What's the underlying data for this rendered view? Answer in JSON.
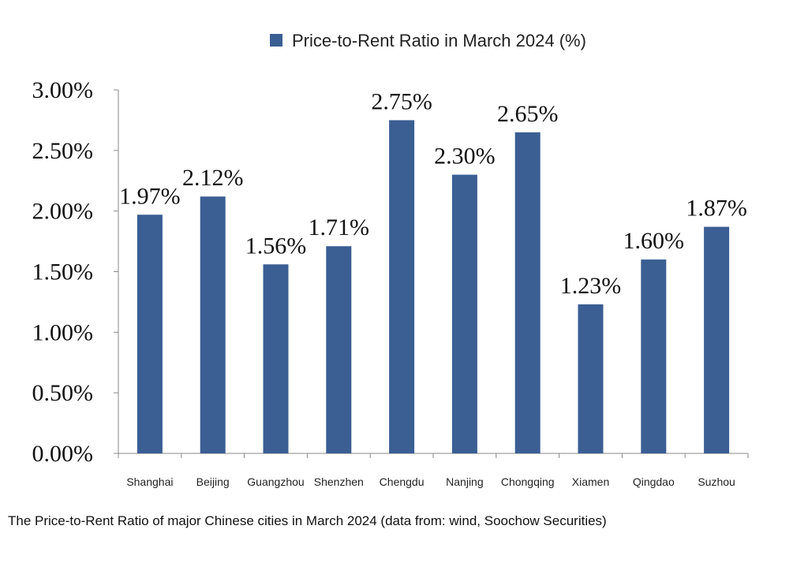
{
  "chart_data": {
    "type": "bar",
    "title": "",
    "xlabel": "",
    "ylabel": "",
    "ylim": [
      0,
      3.0
    ],
    "yticks": [
      "0.00%",
      "0.50%",
      "1.00%",
      "1.50%",
      "2.00%",
      "2.50%",
      "3.00%"
    ],
    "categories": [
      "Shanghai",
      "Beijing",
      "Guangzhou",
      "Shenzhen",
      "Chengdu",
      "Nanjing",
      "Chongqing",
      "Xiamen",
      "Qingdao",
      "Suzhou"
    ],
    "series": [
      {
        "name": "Price-to-Rent Ratio in March 2024 (%)",
        "values": [
          1.97,
          2.12,
          1.56,
          1.71,
          2.75,
          2.3,
          2.65,
          1.23,
          1.6,
          1.87
        ],
        "labels": [
          "1.97%",
          "2.12%",
          "1.56%",
          "1.71%",
          "2.75%",
          "2.30%",
          "2.65%",
          "1.23%",
          "1.60%",
          "1.87%"
        ]
      }
    ],
    "legend_position": "top-center",
    "grid": false,
    "bar_color": "#3b5e93"
  },
  "caption": "The Price-to-Rent Ratio of major Chinese cities in March 2024 (data from: wind, Soochow Securities)"
}
